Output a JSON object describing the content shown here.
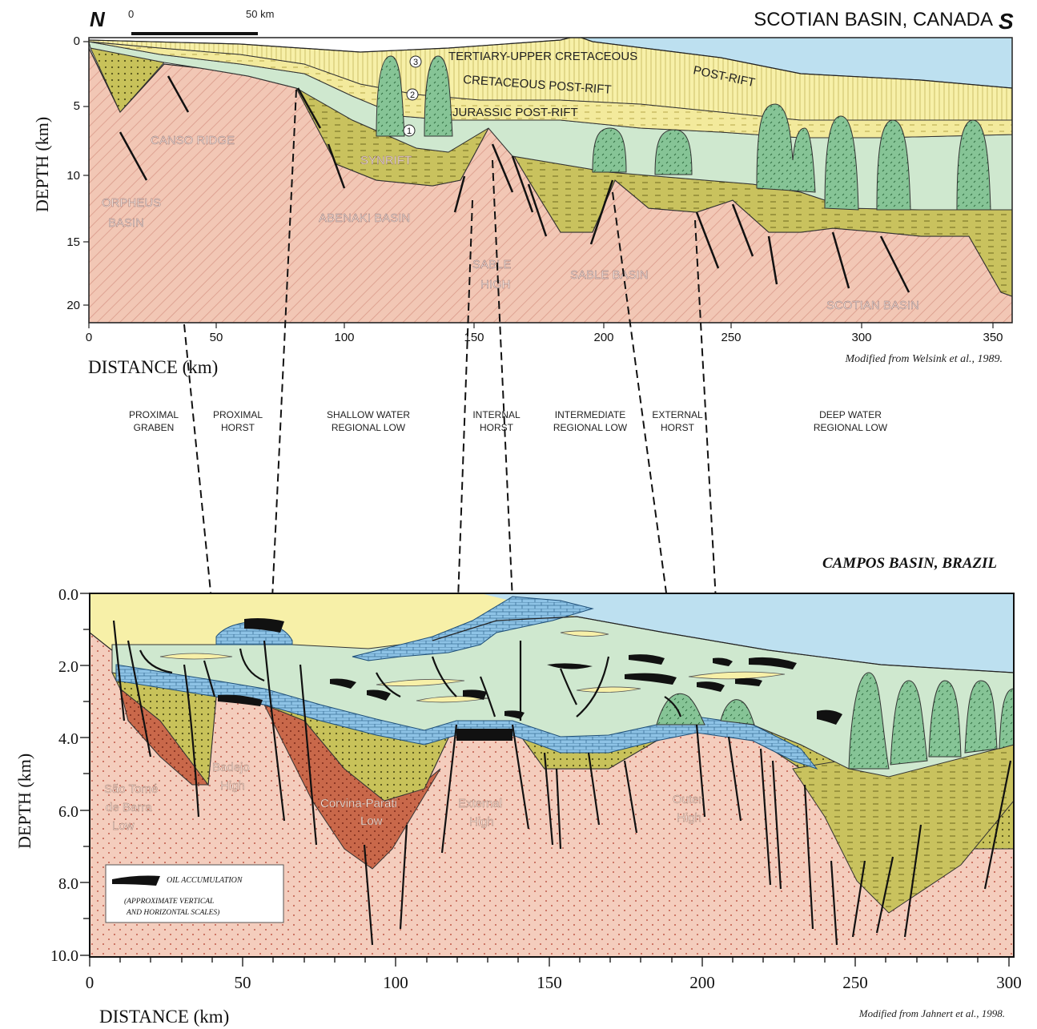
{
  "top": {
    "north": "N",
    "south": "S",
    "title": "SCOTIAN BASIN, CANADA",
    "scale_start": "0",
    "scale_end": "50 km",
    "y_label": "DEPTH (km)",
    "x_label": "DISTANCE (km)",
    "y_ticks": [
      "0",
      "5",
      "10",
      "15",
      "20"
    ],
    "x_ticks": [
      "0",
      "50",
      "100",
      "150",
      "200",
      "250",
      "300",
      "350"
    ],
    "credit": "Modified from Welsink et al., 1989.",
    "layers": {
      "tertiary": "TERTIARY-UPPER CRETACEOUS",
      "postrift": "POST-RIFT",
      "cretaceous": "CRETACEOUS POST-RIFT",
      "jurassic": "JURASSIC POST-RIFT"
    },
    "markers": [
      "1",
      "2",
      "3"
    ],
    "basins": {
      "orpheus_1": "ORPHEUS",
      "orpheus_2": "BASIN",
      "canso": "CANSO RIDGE",
      "synrift": "SYNRIFT",
      "abenaki": "ABENAKI BASIN",
      "sable_high_1": "SABLE",
      "sable_high_2": "HIGH",
      "sable_basin": "SABLE BASIN",
      "scotian": "SCOTIAN BASIN"
    }
  },
  "zones": [
    {
      "l1": "PROXIMAL",
      "l2": "GRABEN"
    },
    {
      "l1": "PROXIMAL",
      "l2": "HORST"
    },
    {
      "l1": "SHALLOW WATER",
      "l2": "REGIONAL LOW"
    },
    {
      "l1": "INTERNAL",
      "l2": "HORST"
    },
    {
      "l1": "INTERMEDIATE",
      "l2": "REGIONAL LOW"
    },
    {
      "l1": "EXTERNAL",
      "l2": "HORST"
    },
    {
      "l1": "DEEP WATER",
      "l2": "REGIONAL LOW"
    }
  ],
  "bottom": {
    "title": "CAMPOS BASIN, BRAZIL",
    "y_label": "DEPTH (km)",
    "x_label": "DISTANCE (km)",
    "y_ticks": [
      "0.0",
      "2.0",
      "4.0",
      "6.0",
      "8.0",
      "10.0"
    ],
    "x_ticks": [
      "0",
      "50",
      "100",
      "150",
      "200",
      "250",
      "300"
    ],
    "credit": "Modified from Jahnert et al., 1998.",
    "legend_item": "OIL ACCUMULATION",
    "legend_note_1": "(APPROXIMATE VERTICAL",
    "legend_note_2": "AND HORIZONTAL SCALES)",
    "structures": {
      "sao_1": "São Tomé",
      "sao_2": "de Barra",
      "sao_3": "Low",
      "badejo_1": "Badejo",
      "badejo_2": "High",
      "corvina_1": "Corvina-Parati",
      "corvina_2": "Low",
      "external_1": "External",
      "external_2": "High",
      "outer_1": "Outer",
      "outer_2": "High"
    }
  },
  "colors": {
    "basement": "#f2c7b5",
    "synrift_olive": "#c9c25e",
    "postrift_green": "#cfe8cf",
    "salt_green": "#86c496",
    "yellow": "#f7f0a8",
    "sea": "#bde0f0",
    "carbonate": "#8ec3e6",
    "red_low": "#c9684a",
    "oil": "#111111"
  }
}
